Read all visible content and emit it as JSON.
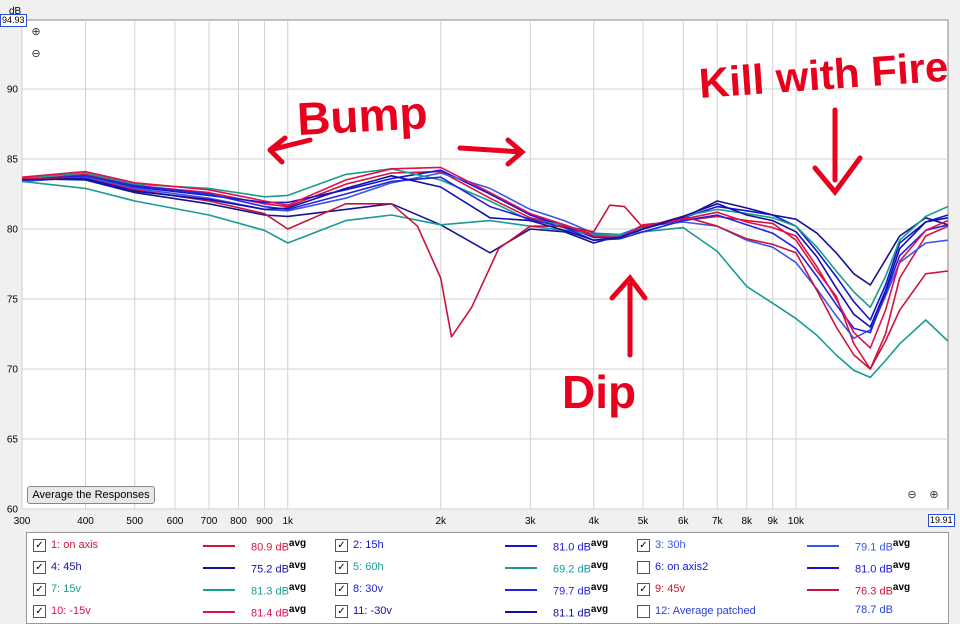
{
  "chart_data": {
    "type": "line",
    "title": "",
    "xlabel": "",
    "ylabel": "dB",
    "x_scale": "log",
    "xlim": [
      300,
      19910
    ],
    "ylim": [
      60,
      94.93
    ],
    "x_ticks": [
      300,
      400,
      500,
      600,
      700,
      800,
      900,
      1000,
      2000,
      3000,
      4000,
      5000,
      6000,
      7000,
      8000,
      9000,
      10000
    ],
    "x_tick_labels": [
      "300",
      "400",
      "500",
      "600",
      "700",
      "800",
      "900",
      "1k",
      "2k",
      "3k",
      "4k",
      "5k",
      "6k",
      "7k",
      "8k",
      "9k",
      "10k"
    ],
    "y_ticks": [
      60,
      65,
      70,
      75,
      80,
      85,
      90
    ],
    "y_tick_labels": [
      "60",
      "65",
      "70",
      "75",
      "80",
      "85",
      "90"
    ],
    "y_top_label": "94.93",
    "x_end_label": "19.91",
    "grid": true,
    "series": [
      {
        "name": "1: on axis",
        "color": "#d4143c",
        "avg": "80.9 dB",
        "checked": true,
        "x": [
          300,
          400,
          500,
          700,
          900,
          1000,
          1300,
          1600,
          2000,
          2500,
          3000,
          3500,
          4000,
          4500,
          5000,
          6000,
          7000,
          8000,
          9000,
          10000,
          11000,
          12000,
          13000,
          14000,
          15000,
          16000,
          18000,
          19900
        ],
        "y": [
          83.5,
          83.9,
          83.1,
          82.6,
          81.8,
          81.6,
          83.2,
          84.0,
          84.1,
          82.2,
          80.8,
          80.3,
          79.6,
          79.4,
          80.3,
          80.6,
          80.9,
          80.6,
          80.4,
          79.2,
          77.0,
          75.2,
          71.8,
          70.0,
          72.5,
          76.5,
          79.5,
          80.2
        ]
      },
      {
        "name": "2: 15h",
        "color": "#1414d4",
        "avg": "81.0 dB",
        "checked": true,
        "x": [
          300,
          400,
          500,
          700,
          900,
          1000,
          1300,
          1600,
          2000,
          2500,
          3000,
          3500,
          4000,
          4500,
          5000,
          6000,
          7000,
          8000,
          9000,
          10000,
          11000,
          12000,
          13000,
          14000,
          15000,
          16000,
          18000,
          19900
        ],
        "y": [
          83.5,
          83.8,
          83.0,
          82.4,
          81.9,
          81.9,
          82.8,
          83.6,
          84.2,
          82.5,
          81.0,
          80.2,
          79.4,
          79.4,
          80.0,
          80.8,
          81.6,
          81.3,
          81.0,
          80.2,
          78.4,
          76.6,
          74.8,
          73.5,
          76.0,
          79.0,
          80.5,
          81.0
        ]
      },
      {
        "name": "3: 30h",
        "color": "#3a56e8",
        "avg": "79.1 dB",
        "checked": true,
        "x": [
          300,
          400,
          500,
          700,
          900,
          1000,
          1300,
          1600,
          2000,
          2500,
          3000,
          3500,
          4000,
          4500,
          5000,
          6000,
          7000,
          8000,
          9000,
          10000,
          11000,
          12000,
          13000,
          14000,
          15000,
          16000,
          18000,
          19900
        ],
        "y": [
          83.4,
          83.7,
          82.9,
          82.2,
          81.4,
          81.3,
          82.2,
          83.3,
          84.0,
          82.9,
          81.4,
          80.6,
          79.7,
          79.6,
          80.2,
          80.5,
          80.2,
          79.2,
          78.7,
          77.6,
          75.7,
          73.8,
          72.2,
          72.8,
          75.2,
          77.6,
          79.0,
          79.2
        ]
      },
      {
        "name": "4: 45h",
        "color": "#141494",
        "avg": "75.2 dB",
        "checked": true,
        "x": [
          300,
          400,
          500,
          700,
          900,
          1000,
          1300,
          1600,
          2000,
          2500,
          3000,
          3500,
          4000,
          4500,
          5000,
          6000,
          7000,
          8000,
          9000,
          10000,
          11000,
          12000,
          13000,
          14000,
          15000,
          16000,
          18000,
          19900
        ],
        "y": [
          83.6,
          83.5,
          82.6,
          81.8,
          81.0,
          80.9,
          81.4,
          81.8,
          80.3,
          78.3,
          80.0,
          79.8,
          79.0,
          79.5,
          80.0,
          80.8,
          82.0,
          81.5,
          81.0,
          80.7,
          79.7,
          78.3,
          76.8,
          76.0,
          77.8,
          79.5,
          80.8,
          80.3
        ]
      },
      {
        "name": "5: 60h",
        "color": "#1a9a96",
        "avg": "69.2 dB",
        "checked": true,
        "x": [
          300,
          400,
          500,
          700,
          900,
          1000,
          1300,
          1600,
          2000,
          2500,
          3000,
          3500,
          4000,
          4500,
          5000,
          6000,
          7000,
          8000,
          9000,
          10000,
          11000,
          12000,
          13000,
          14000,
          15000,
          16000,
          18000,
          19900
        ],
        "y": [
          83.4,
          82.9,
          82.0,
          81.0,
          79.9,
          79.0,
          80.6,
          81.0,
          80.3,
          80.6,
          80.2,
          79.9,
          79.6,
          79.6,
          79.8,
          80.1,
          78.4,
          75.9,
          74.7,
          73.6,
          72.4,
          71.0,
          69.9,
          69.4,
          70.6,
          71.8,
          73.5,
          72.0
        ]
      },
      {
        "name": "6: on axis2",
        "color": "#1414d4",
        "avg": "81.0 dB",
        "checked": false,
        "x": [],
        "y": []
      },
      {
        "name": "7: 15v",
        "color": "#189e90",
        "avg": "81.3 dB",
        "checked": true,
        "x": [
          300,
          400,
          500,
          700,
          900,
          1000,
          1300,
          1600,
          2000,
          2500,
          3000,
          3500,
          4000,
          4500,
          5000,
          6000,
          7000,
          8000,
          9000,
          10000,
          11000,
          12000,
          13000,
          14000,
          15000,
          16000,
          18000,
          19900
        ],
        "y": [
          83.6,
          84.0,
          83.2,
          82.9,
          82.3,
          82.4,
          83.9,
          84.3,
          83.5,
          82.0,
          80.6,
          80.3,
          79.5,
          79.5,
          80.1,
          80.9,
          81.4,
          81.1,
          80.8,
          80.2,
          78.7,
          77.0,
          75.5,
          74.4,
          76.6,
          79.2,
          80.9,
          81.6
        ]
      },
      {
        "name": "8: 30v",
        "color": "#2424e0",
        "avg": "79.7 dB",
        "checked": true,
        "x": [
          300,
          400,
          500,
          700,
          900,
          1000,
          1300,
          1600,
          2000,
          2500,
          3000,
          3500,
          4000,
          4500,
          5000,
          6000,
          7000,
          8000,
          9000,
          10000,
          11000,
          12000,
          13000,
          14000,
          15000,
          16000,
          18000,
          19900
        ],
        "y": [
          83.5,
          83.8,
          83.1,
          82.5,
          81.6,
          81.4,
          82.5,
          83.4,
          83.7,
          81.6,
          80.7,
          80.1,
          79.2,
          79.3,
          79.8,
          80.6,
          81.0,
          80.3,
          79.7,
          78.6,
          76.6,
          74.6,
          72.9,
          72.6,
          75.4,
          78.1,
          79.9,
          80.3
        ]
      },
      {
        "name": "9: 45v",
        "color": "#c8143c",
        "avg": "76.3 dB",
        "checked": true,
        "x": [
          300,
          400,
          500,
          700,
          900,
          1000,
          1300,
          1600,
          1800,
          2000,
          2100,
          2300,
          2600,
          3000,
          3500,
          4000,
          4300,
          4600,
          5000,
          6000,
          7000,
          8000,
          9000,
          10000,
          11000,
          12000,
          13000,
          14000,
          15000,
          16000,
          18000,
          19900
        ],
        "y": [
          83.6,
          83.6,
          82.8,
          82.0,
          81.1,
          80.0,
          81.8,
          81.8,
          80.2,
          76.5,
          72.3,
          74.4,
          78.6,
          80.2,
          80.2,
          79.8,
          81.7,
          81.6,
          80.1,
          80.9,
          80.2,
          79.3,
          78.9,
          78.3,
          75.6,
          73.0,
          71.0,
          70.0,
          72.0,
          74.2,
          76.8,
          77.0
        ]
      },
      {
        "name": "10: -15v",
        "color": "#e01050",
        "avg": "81.4 dB",
        "checked": true,
        "x": [
          300,
          400,
          500,
          700,
          900,
          1000,
          1300,
          1600,
          2000,
          2500,
          3000,
          3500,
          4000,
          4500,
          5000,
          6000,
          7000,
          8000,
          9000,
          10000,
          11000,
          12000,
          13000,
          14000,
          15000,
          16000,
          18000,
          19900
        ],
        "y": [
          83.7,
          84.1,
          83.3,
          82.8,
          82.0,
          81.7,
          83.5,
          84.3,
          84.4,
          82.6,
          81.1,
          80.3,
          79.5,
          79.4,
          80.2,
          80.7,
          81.2,
          80.5,
          80.1,
          79.5,
          77.3,
          75.0,
          72.6,
          71.5,
          74.2,
          77.7,
          79.9,
          80.6
        ]
      },
      {
        "name": "11: -30v",
        "color": "#1010a8",
        "avg": "81.1 dB",
        "checked": true,
        "x": [
          300,
          400,
          500,
          700,
          900,
          1000,
          1300,
          1600,
          2000,
          2500,
          3000,
          3500,
          4000,
          4500,
          5000,
          6000,
          7000,
          8000,
          9000,
          10000,
          11000,
          12000,
          13000,
          14000,
          15000,
          16000,
          18000,
          19900
        ],
        "y": [
          83.5,
          83.6,
          82.7,
          82.1,
          81.4,
          81.5,
          82.9,
          83.8,
          83.0,
          80.8,
          80.6,
          79.9,
          79.2,
          79.4,
          80.0,
          80.9,
          81.8,
          81.0,
          80.6,
          79.8,
          78.0,
          75.8,
          73.9,
          73.0,
          75.6,
          78.6,
          80.5,
          80.8
        ]
      },
      {
        "name": "12: Average patched",
        "color": "#2a3fd8",
        "avg": "78.7 dB",
        "checked": false,
        "x": [],
        "y": []
      }
    ],
    "annotations": [
      "Bump",
      "Dip",
      "Kill with Fire"
    ]
  },
  "ui": {
    "average_button": "Average the Responses",
    "avg_suffix": "avg",
    "check_mark": "✓"
  }
}
